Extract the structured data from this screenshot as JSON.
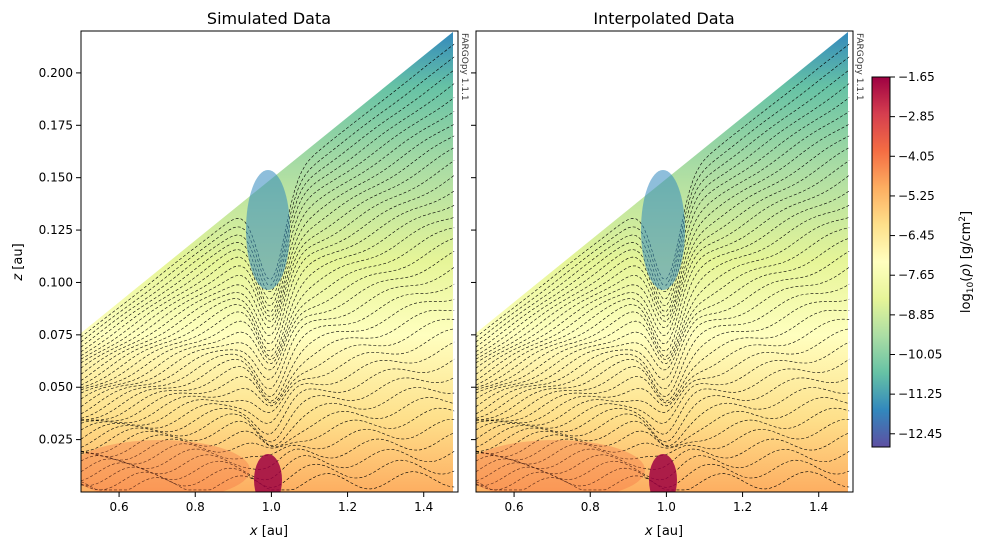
{
  "chart_data": [
    {
      "type": "heatmap",
      "title": "Simulated Data",
      "xlabel_var": "x",
      "xlabel_unit": " [au]",
      "ylabel_var": "z",
      "ylabel_unit": " [au]",
      "xlim": [
        0.5,
        1.49
      ],
      "ylim": [
        0.0,
        0.22
      ],
      "xticks": [
        0.6,
        0.8,
        1.0,
        1.2,
        1.4
      ],
      "xtick_labels": [
        "0.6",
        "0.8",
        "1.0",
        "1.2",
        "1.4"
      ],
      "yticks": [
        0.025,
        0.05,
        0.075,
        0.1,
        0.125,
        0.15,
        0.175,
        0.2
      ],
      "ytick_labels": [
        "0.025",
        "0.050",
        "0.075",
        "0.100",
        "0.125",
        "0.150",
        "0.175",
        "0.200"
      ],
      "watermark": "FARGOpy 1.1.1",
      "upper_boundary": {
        "x": [
          0.5,
          1.48
        ],
        "z": [
          0.076,
          0.22
        ]
      },
      "planet": {
        "x": 1.0,
        "z": 0.0
      },
      "contours": "dashed black lines"
    },
    {
      "type": "heatmap",
      "title": "Interpolated Data",
      "xlabel_var": "x",
      "xlabel_unit": " [au]",
      "xlim": [
        0.5,
        1.49
      ],
      "ylim": [
        0.0,
        0.22
      ],
      "xticks": [
        0.6,
        0.8,
        1.0,
        1.2,
        1.4
      ],
      "xtick_labels": [
        "0.6",
        "0.8",
        "1.0",
        "1.2",
        "1.4"
      ],
      "yticks": [
        0.025,
        0.05,
        0.075,
        0.1,
        0.125,
        0.15,
        0.175,
        0.2
      ],
      "watermark": "FARGOpy 1.1.1",
      "upper_boundary": {
        "x": [
          0.5,
          1.48
        ],
        "z": [
          0.076,
          0.22
        ]
      },
      "planet": {
        "x": 1.0,
        "z": 0.0
      },
      "contours": "dashed black lines"
    }
  ],
  "colorbar": {
    "label": "log10(ρ) [g/cm²]",
    "colormap": "Spectral_r",
    "range": [
      -12.85,
      -1.65
    ],
    "ticks": [
      -1.65,
      -2.85,
      -4.05,
      -5.25,
      -6.45,
      -7.65,
      -8.85,
      -10.05,
      -11.25,
      -12.45
    ],
    "tick_labels": [
      "−1.65",
      "−2.85",
      "−4.05",
      "−5.25",
      "−6.45",
      "−7.65",
      "−8.85",
      "−10.05",
      "−11.25",
      "−12.45"
    ],
    "colors": [
      "#5e4fa2",
      "#3288bd",
      "#66c2a5",
      "#abdda4",
      "#e6f598",
      "#ffffbf",
      "#fee08b",
      "#fdae61",
      "#f46d43",
      "#d53e4f",
      "#9e0142"
    ]
  }
}
